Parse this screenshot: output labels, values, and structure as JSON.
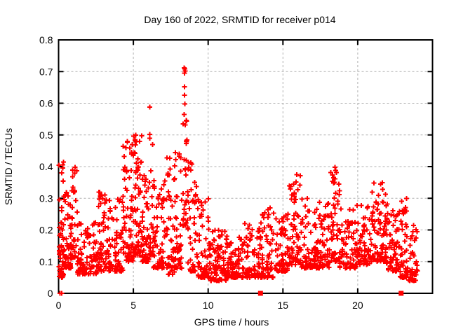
{
  "chart_data": {
    "type": "scatter",
    "title": "Day 160 of 2022, SRMTID for receiver p014",
    "xlabel": "GPS time / hours",
    "ylabel": "SRMTID / TECUs",
    "xlim": [
      0,
      25
    ],
    "ylim": [
      0,
      0.8
    ],
    "xticks": [
      0,
      5,
      10,
      15,
      20
    ],
    "xtick_labels": [
      "0",
      "5",
      "10",
      "15",
      "20"
    ],
    "yticks": [
      0,
      0.1,
      0.2,
      0.3,
      0.4,
      0.5,
      0.6,
      0.7,
      0.8
    ],
    "ytick_labels": [
      "0",
      "0.1",
      "0.2",
      "0.3",
      "0.4",
      "0.5",
      "0.6",
      "0.7",
      "0.8"
    ],
    "grid": true,
    "legend": "none",
    "marker": {
      "shape": "plus",
      "size": 7,
      "color": "#ff0000"
    },
    "square_marker": {
      "shape": "filled-square",
      "size": 7,
      "color": "#ff0000"
    },
    "square_marker_points": [
      [
        13.5,
        0
      ],
      [
        22.9,
        0
      ]
    ],
    "notable_points": [
      [
        0.1,
        0.0
      ],
      [
        0.22,
        0.0
      ],
      [
        0.28,
        0.405
      ],
      [
        0.3,
        0.355
      ],
      [
        1.1,
        0.398
      ],
      [
        5.15,
        0.5
      ],
      [
        5.18,
        0.478
      ],
      [
        6.09,
        0.588
      ],
      [
        6.1,
        0.502
      ],
      [
        8.4,
        0.712
      ],
      [
        8.44,
        0.708
      ],
      [
        8.47,
        0.702
      ],
      [
        8.42,
        0.695
      ],
      [
        8.43,
        0.652
      ],
      [
        8.41,
        0.625
      ],
      [
        8.45,
        0.598
      ],
      [
        8.4,
        0.565
      ],
      [
        8.46,
        0.532
      ],
      [
        15.92,
        0.375
      ],
      [
        18.48,
        0.398
      ],
      [
        18.52,
        0.388
      ],
      [
        21.52,
        0.345
      ]
    ],
    "point_clusters": [
      {
        "x0": 0.02,
        "x1": 0.35,
        "n": 50,
        "lo": 0.05,
        "hi": 0.42,
        "k": 2.2
      },
      {
        "x0": 0.35,
        "x1": 0.85,
        "n": 55,
        "lo": 0.08,
        "hi": 0.33,
        "k": 2.2
      },
      {
        "x0": 0.85,
        "x1": 1.25,
        "n": 32,
        "lo": 0.11,
        "hi": 0.41,
        "k": 1.8
      },
      {
        "x0": 1.25,
        "x1": 2.6,
        "n": 95,
        "lo": 0.06,
        "hi": 0.23,
        "k": 2.1
      },
      {
        "x0": 2.6,
        "x1": 3.1,
        "n": 45,
        "lo": 0.07,
        "hi": 0.33,
        "k": 2.0
      },
      {
        "x0": 3.1,
        "x1": 4.3,
        "n": 85,
        "lo": 0.07,
        "hi": 0.3,
        "k": 2.2
      },
      {
        "x0": 4.3,
        "x1": 5.0,
        "n": 70,
        "lo": 0.1,
        "hi": 0.48,
        "k": 2.0
      },
      {
        "x0": 5.0,
        "x1": 5.6,
        "n": 65,
        "lo": 0.12,
        "hi": 0.5,
        "k": 2.0
      },
      {
        "x0": 5.6,
        "x1": 6.05,
        "n": 45,
        "lo": 0.1,
        "hi": 0.38,
        "k": 2.0
      },
      {
        "x0": 6.05,
        "x1": 6.35,
        "n": 28,
        "lo": 0.12,
        "hi": 0.5,
        "k": 1.8
      },
      {
        "x0": 6.35,
        "x1": 7.2,
        "n": 60,
        "lo": 0.08,
        "hi": 0.36,
        "k": 2.2
      },
      {
        "x0": 7.2,
        "x1": 7.75,
        "n": 45,
        "lo": 0.06,
        "hi": 0.44,
        "k": 2.1
      },
      {
        "x0": 7.75,
        "x1": 8.25,
        "n": 42,
        "lo": 0.08,
        "hi": 0.46,
        "k": 1.9
      },
      {
        "x0": 8.3,
        "x1": 8.65,
        "n": 30,
        "lo": 0.2,
        "hi": 0.6,
        "k": 1.3
      },
      {
        "x0": 8.65,
        "x1": 9.3,
        "n": 48,
        "lo": 0.07,
        "hi": 0.42,
        "k": 2.2
      },
      {
        "x0": 9.3,
        "x1": 10.1,
        "n": 60,
        "lo": 0.05,
        "hi": 0.3,
        "k": 2.3
      },
      {
        "x0": 10.1,
        "x1": 11.2,
        "n": 85,
        "lo": 0.04,
        "hi": 0.2,
        "k": 2.0
      },
      {
        "x0": 11.2,
        "x1": 12.4,
        "n": 90,
        "lo": 0.05,
        "hi": 0.18,
        "k": 2.0
      },
      {
        "x0": 12.4,
        "x1": 13.5,
        "n": 70,
        "lo": 0.05,
        "hi": 0.22,
        "k": 2.1
      },
      {
        "x0": 13.5,
        "x1": 14.4,
        "n": 60,
        "lo": 0.05,
        "hi": 0.27,
        "k": 2.2
      },
      {
        "x0": 14.4,
        "x1": 15.3,
        "n": 62,
        "lo": 0.07,
        "hi": 0.27,
        "k": 2.1
      },
      {
        "x0": 15.3,
        "x1": 16.2,
        "n": 70,
        "lo": 0.09,
        "hi": 0.38,
        "k": 2.0
      },
      {
        "x0": 16.2,
        "x1": 17.3,
        "n": 70,
        "lo": 0.08,
        "hi": 0.3,
        "k": 2.1
      },
      {
        "x0": 17.3,
        "x1": 18.2,
        "n": 62,
        "lo": 0.08,
        "hi": 0.29,
        "k": 2.1
      },
      {
        "x0": 18.2,
        "x1": 18.8,
        "n": 55,
        "lo": 0.1,
        "hi": 0.4,
        "k": 1.7
      },
      {
        "x0": 18.8,
        "x1": 19.9,
        "n": 65,
        "lo": 0.08,
        "hi": 0.27,
        "k": 2.1
      },
      {
        "x0": 19.9,
        "x1": 20.9,
        "n": 65,
        "lo": 0.09,
        "hi": 0.3,
        "k": 2.0
      },
      {
        "x0": 20.9,
        "x1": 21.9,
        "n": 75,
        "lo": 0.1,
        "hi": 0.35,
        "k": 2.0
      },
      {
        "x0": 21.9,
        "x1": 22.8,
        "n": 68,
        "lo": 0.07,
        "hi": 0.31,
        "k": 2.0
      },
      {
        "x0": 22.8,
        "x1": 23.4,
        "n": 52,
        "lo": 0.05,
        "hi": 0.3,
        "k": 2.2
      },
      {
        "x0": 23.4,
        "x1": 24.0,
        "n": 45,
        "lo": 0.04,
        "hi": 0.22,
        "k": 2.2
      }
    ],
    "seed": 160
  },
  "chart_style": {
    "marker_color": "#ff0000",
    "grid_color": "#b0b0b0",
    "border_color": "#000000",
    "text_color": "#000000",
    "background": "#ffffff"
  }
}
